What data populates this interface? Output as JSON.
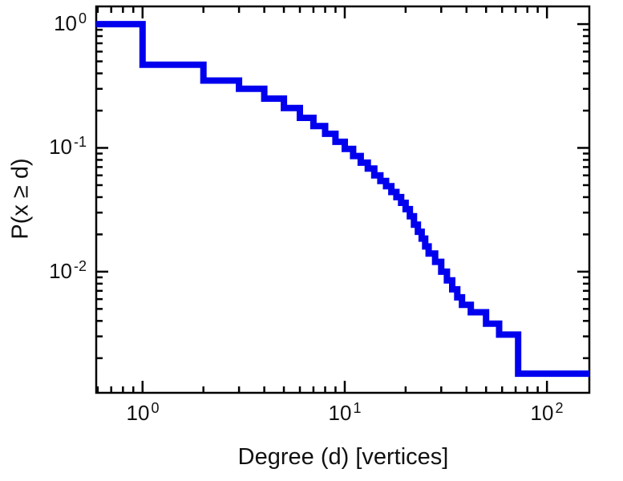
{
  "figure": {
    "background": "#ffffff",
    "axis_color": "#000000",
    "text_color": "#111111"
  },
  "chart_data": {
    "type": "line",
    "step": true,
    "title": "",
    "xlabel": "Degree (d) [vertices]",
    "ylabel": "P(x ≥ d)",
    "x_scale": "log",
    "y_scale": "log",
    "xlim": [
      0.59,
      162
    ],
    "ylim": [
      0.00105,
      1.39
    ],
    "grid": false,
    "line_color": "#0000ee",
    "line_width": 8,
    "axis_color": "#000000",
    "log_base_label": "10",
    "x_ticks": [
      {
        "v": 1,
        "exp": "0"
      },
      {
        "v": 10,
        "exp": "1"
      },
      {
        "v": 100,
        "exp": "2"
      }
    ],
    "y_ticks": [
      {
        "v": 1,
        "exp": "0"
      },
      {
        "v": 0.1,
        "exp": "-1"
      },
      {
        "v": 0.01,
        "exp": "-2"
      }
    ],
    "initial_p": 1.0,
    "ccdf_steps": [
      [
        1,
        0.47
      ],
      [
        2,
        0.35
      ],
      [
        3,
        0.3
      ],
      [
        4,
        0.25
      ],
      [
        5,
        0.21
      ],
      [
        6,
        0.175
      ],
      [
        7,
        0.15
      ],
      [
        8,
        0.13
      ],
      [
        9,
        0.112
      ],
      [
        10,
        0.098
      ],
      [
        11,
        0.086
      ],
      [
        12,
        0.076
      ],
      [
        13,
        0.068
      ],
      [
        14,
        0.06
      ],
      [
        15,
        0.054
      ],
      [
        16,
        0.049
      ],
      [
        17,
        0.044
      ],
      [
        18,
        0.04
      ],
      [
        19,
        0.036
      ],
      [
        20,
        0.032
      ],
      [
        21,
        0.028
      ],
      [
        22,
        0.024
      ],
      [
        23,
        0.021
      ],
      [
        24,
        0.0185
      ],
      [
        25,
        0.016
      ],
      [
        26,
        0.014
      ],
      [
        28,
        0.012
      ],
      [
        30,
        0.01
      ],
      [
        32,
        0.0085
      ],
      [
        34,
        0.0072
      ],
      [
        36,
        0.0062
      ],
      [
        38,
        0.0054
      ],
      [
        42,
        0.0047
      ],
      [
        50,
        0.0038
      ],
      [
        58,
        0.0031
      ],
      [
        72,
        0.0015
      ]
    ]
  }
}
